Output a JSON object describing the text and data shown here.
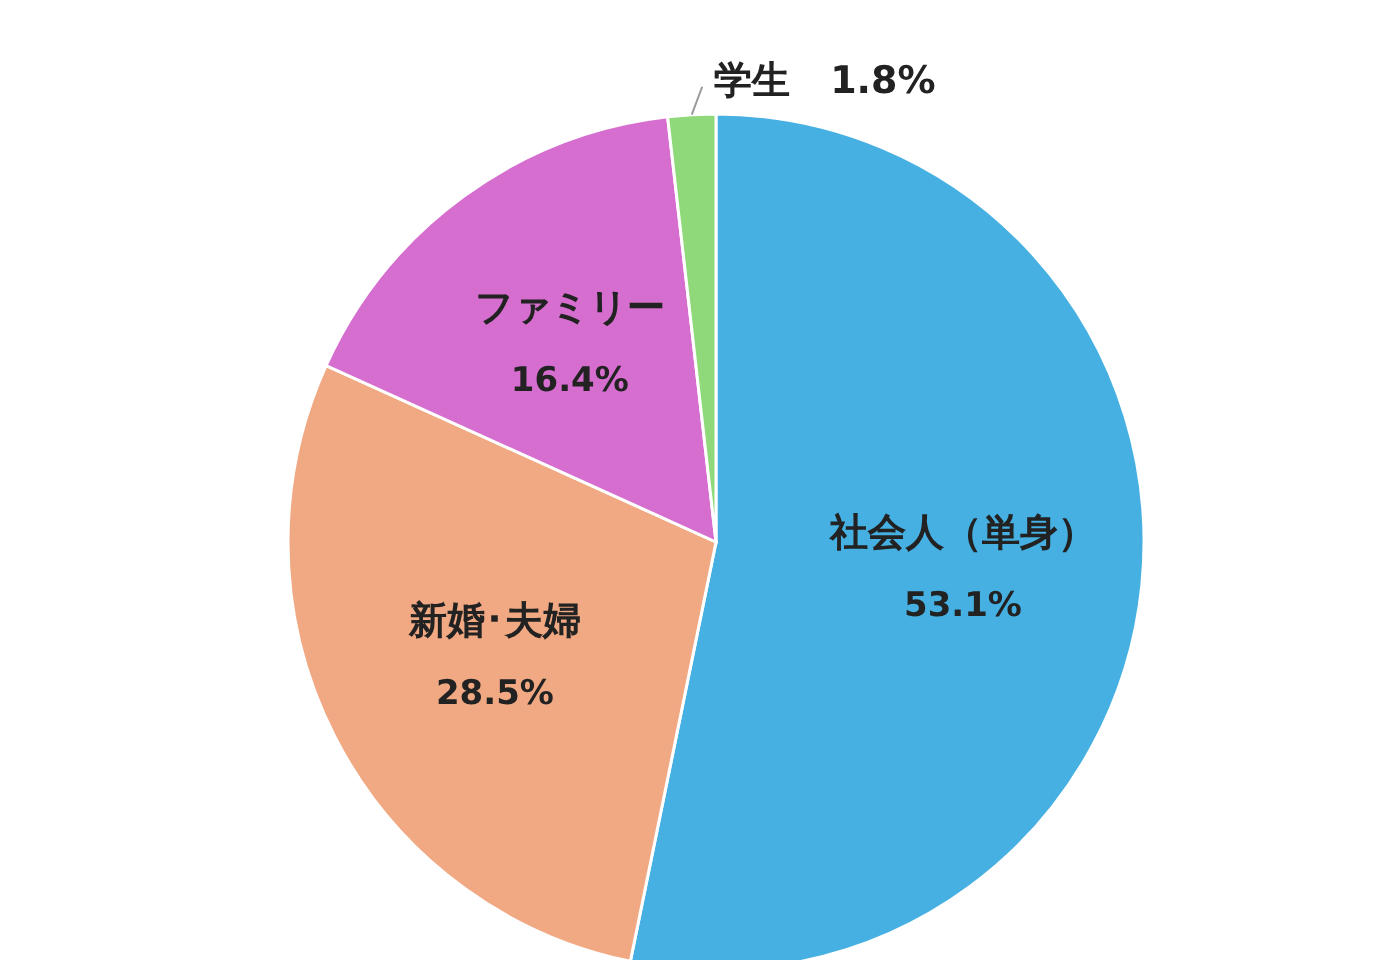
{
  "chart_data": {
    "type": "pie",
    "categories": [
      "社会人（単身）",
      "新婚･夫婦",
      "ファミリー",
      "学生"
    ],
    "values": [
      53.1,
      28.5,
      16.4,
      1.8
    ],
    "value_labels": [
      "53.1%",
      "28.5%",
      "16.4%",
      "1.8%"
    ],
    "colors": [
      "#45b0e1",
      "#f0a983",
      "#d66ecf",
      "#8fd97a"
    ],
    "legend": false
  }
}
